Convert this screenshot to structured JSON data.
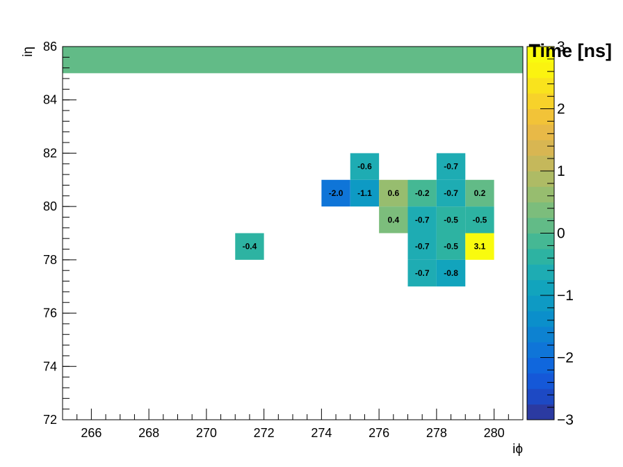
{
  "chart_data": {
    "type": "heatmap",
    "title": "",
    "xlabel": "iϕ",
    "ylabel": "iη",
    "zlabel": "Time [ns]",
    "xlim": [
      265,
      281
    ],
    "ylim": [
      72,
      86
    ],
    "zlim": [
      -3,
      3
    ],
    "x_ticks": [
      "266",
      "268",
      "270",
      "272",
      "274",
      "276",
      "278",
      "280"
    ],
    "y_ticks": [
      "72",
      "74",
      "76",
      "78",
      "80",
      "82",
      "84",
      "86"
    ],
    "z_ticks": [
      "−3",
      "−2",
      "−1",
      "0",
      "1",
      "2",
      "3"
    ],
    "band": {
      "x_from": 265,
      "x_to": 281,
      "y_from": 85,
      "y_to": 86,
      "value": 0.0
    },
    "cells": [
      {
        "x": 275,
        "y": 81,
        "value": -0.6,
        "label": "-0.6"
      },
      {
        "x": 278,
        "y": 81,
        "value": -0.7,
        "label": "-0.7"
      },
      {
        "x": 274,
        "y": 80,
        "value": -2.0,
        "label": "-2.0"
      },
      {
        "x": 275,
        "y": 80,
        "value": -1.1,
        "label": "-1.1"
      },
      {
        "x": 276,
        "y": 80,
        "value": 0.6,
        "label": "0.6"
      },
      {
        "x": 277,
        "y": 80,
        "value": -0.2,
        "label": "-0.2"
      },
      {
        "x": 278,
        "y": 80,
        "value": -0.7,
        "label": "-0.7"
      },
      {
        "x": 279,
        "y": 80,
        "value": 0.2,
        "label": "0.2"
      },
      {
        "x": 276,
        "y": 79,
        "value": 0.4,
        "label": "0.4"
      },
      {
        "x": 277,
        "y": 79,
        "value": -0.7,
        "label": "-0.7"
      },
      {
        "x": 278,
        "y": 79,
        "value": -0.5,
        "label": "-0.5"
      },
      {
        "x": 279,
        "y": 79,
        "value": -0.5,
        "label": "-0.5"
      },
      {
        "x": 271,
        "y": 78,
        "value": -0.4,
        "label": "-0.4"
      },
      {
        "x": 277,
        "y": 78,
        "value": -0.7,
        "label": "-0.7"
      },
      {
        "x": 278,
        "y": 78,
        "value": -0.5,
        "label": "-0.5"
      },
      {
        "x": 279,
        "y": 78,
        "value": 3.1,
        "label": "3.1"
      },
      {
        "x": 277,
        "y": 77,
        "value": -0.7,
        "label": "-0.7"
      },
      {
        "x": 278,
        "y": 77,
        "value": -0.8,
        "label": "-0.8"
      }
    ],
    "palette": [
      "#2b3aa1",
      "#1d49c4",
      "#1558d8",
      "#1067dd",
      "#0f75d8",
      "#0d82d1",
      "#0b8fcb",
      "#0e9ac4",
      "#12a4bd",
      "#1eacb3",
      "#2db3a2",
      "#45b894",
      "#62bb87",
      "#7cbd7c",
      "#97bd6f",
      "#aebb65",
      "#c5b85b",
      "#d8b652",
      "#e8b947",
      "#f2c338",
      "#f7d22a",
      "#f9e31d",
      "#fbf310",
      "#f9fb0e"
    ]
  }
}
